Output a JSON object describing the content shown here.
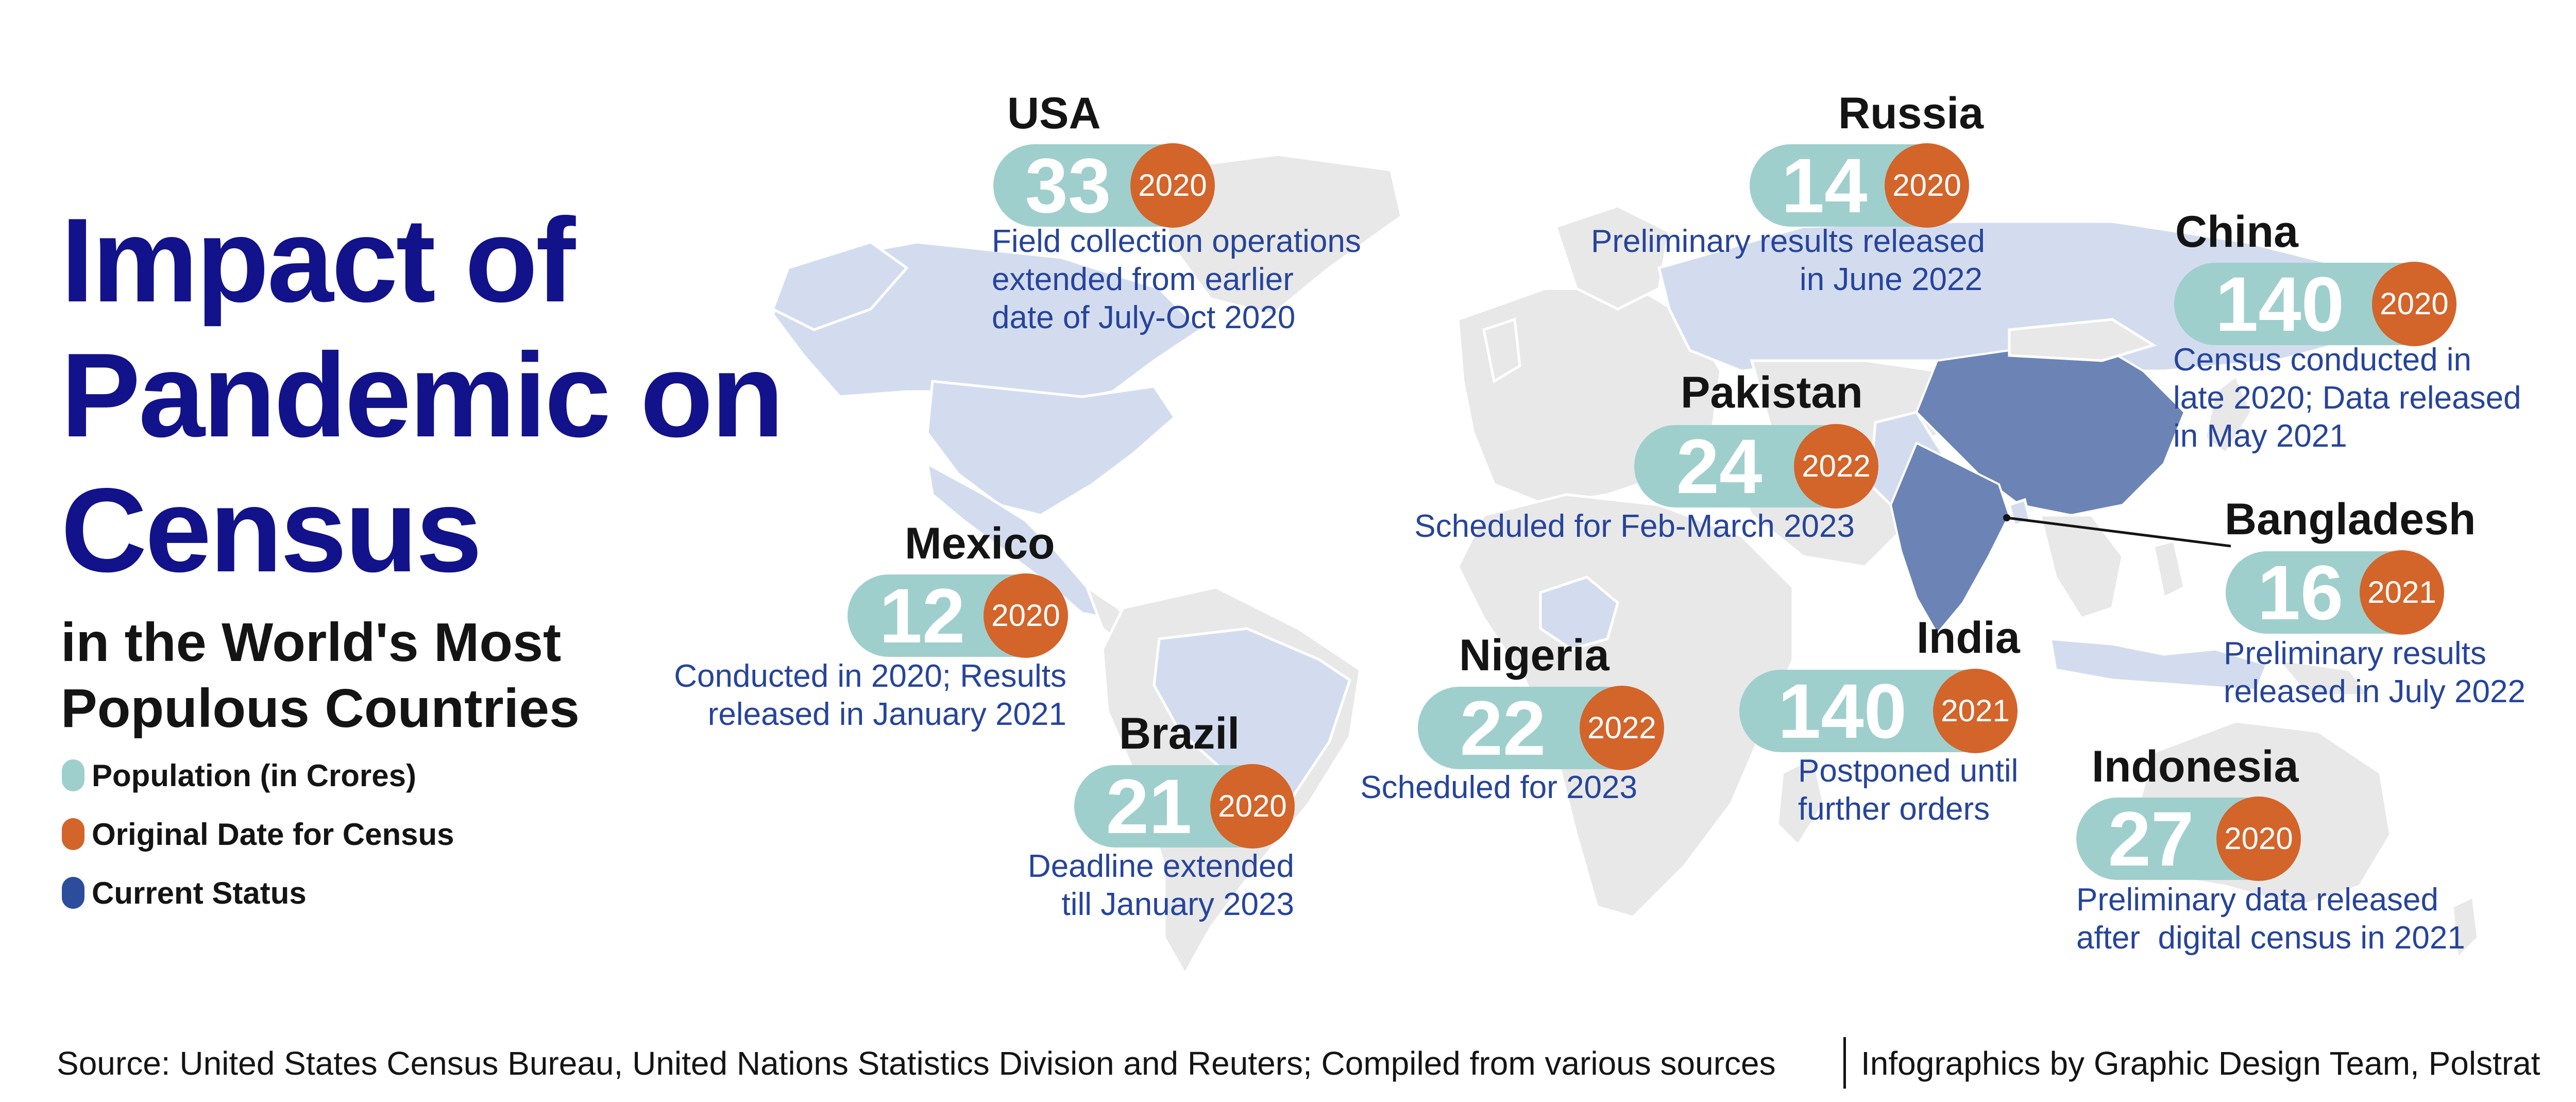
{
  "title": {
    "main_lines": [
      "Impact of",
      "Pandemic on",
      "Census"
    ],
    "subtitle_lines": [
      "in the World's Most",
      "Populous Countries"
    ]
  },
  "legend": [
    {
      "label": "Population (in Crores)",
      "color": "#9fcfcd"
    },
    {
      "label": "Original Date for Census",
      "color": "#d3642a"
    },
    {
      "label": "Current Status",
      "color": "#2c4d9c"
    }
  ],
  "colors": {
    "title": "#12128a",
    "population_badge": "#9fcfcd",
    "census_year": "#d3642a",
    "status_text": "#26449a",
    "map_land": "#e8e8e8",
    "map_highlight": "#d3dcef",
    "map_china_india": "#6c84b5"
  },
  "countries": {
    "usa": {
      "name": "USA",
      "population": "33",
      "original_year": "2020",
      "status_lines": [
        "Field collection operations",
        "extended from earlier",
        "date of July-Oct 2020"
      ]
    },
    "russia": {
      "name": "Russia",
      "population": "14",
      "original_year": "2020",
      "status_lines": [
        "Preliminary results released",
        "in June 2022"
      ]
    },
    "china": {
      "name": "China",
      "population": "140",
      "original_year": "2020",
      "status_lines": [
        "Census conducted in",
        "late 2020; Data released",
        "in May 2021"
      ]
    },
    "pakistan": {
      "name": "Pakistan",
      "population": "24",
      "original_year": "2022",
      "status_lines": [
        "Scheduled for Feb-March 2023"
      ]
    },
    "mexico": {
      "name": "Mexico",
      "population": "12",
      "original_year": "2020",
      "status_lines": [
        "Conducted in 2020; Results",
        "released in January 2021"
      ]
    },
    "bangladesh": {
      "name": "Bangladesh",
      "population": "16",
      "original_year": "2021",
      "status_lines": [
        "Preliminary results",
        "released in July 2022"
      ]
    },
    "brazil": {
      "name": "Brazil",
      "population": "21",
      "original_year": "2020",
      "status_lines": [
        "Deadline extended",
        "till January 2023"
      ]
    },
    "nigeria": {
      "name": "Nigeria",
      "population": "22",
      "original_year": "2022",
      "status_lines": [
        "Scheduled for 2023"
      ]
    },
    "india": {
      "name": "India",
      "population": "140",
      "original_year": "2021",
      "status_lines": [
        "Postponed until",
        "further orders"
      ]
    },
    "indonesia": {
      "name": "Indonesia",
      "population": "27",
      "original_year": "2020",
      "status_lines": [
        "Preliminary data released",
        "after  digital census in 2021"
      ]
    }
  },
  "footer": {
    "source": "Source: United States Census Bureau, United Nations Statistics Division and Reuters; Compiled from various sources",
    "credit": "Infographics by Graphic Design Team, Polstrat"
  }
}
